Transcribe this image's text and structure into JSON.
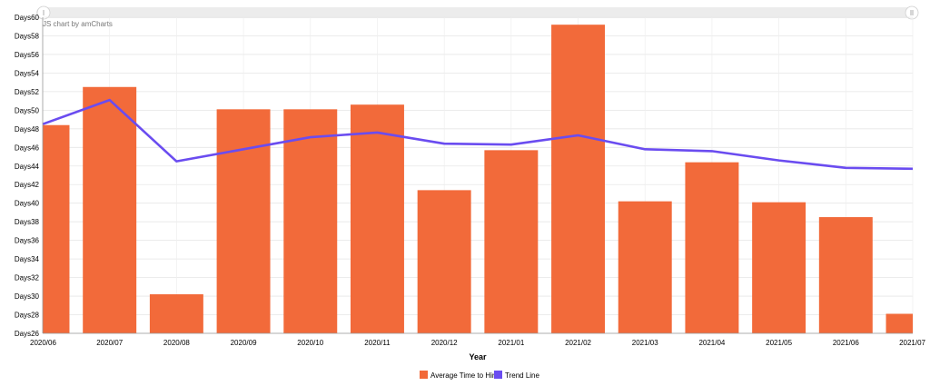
{
  "credit": "JS chart by amCharts",
  "chart_data": {
    "type": "bar",
    "title": "",
    "xlabel": "Year",
    "ylabel": "",
    "y_prefix": "Days",
    "ylim": [
      26,
      60
    ],
    "y_step": 2,
    "grid": true,
    "legend_position": "bottom",
    "categories": [
      "2020/06",
      "2020/07",
      "2020/08",
      "2020/09",
      "2020/10",
      "2020/11",
      "2020/12",
      "2021/01",
      "2021/02",
      "2021/03",
      "2021/04",
      "2021/05",
      "2021/06",
      "2021/07"
    ],
    "series": [
      {
        "name": "Average Time to Hire",
        "type": "bar",
        "color": "#f26a3a",
        "values": [
          48.4,
          52.5,
          30.2,
          50.1,
          50.1,
          50.6,
          41.4,
          45.7,
          59.2,
          40.2,
          44.4,
          40.1,
          38.5,
          28.1
        ]
      },
      {
        "name": "Trend Line",
        "type": "line",
        "color": "#6a4cf0",
        "values": [
          48.5,
          51.1,
          44.5,
          45.8,
          47.1,
          47.6,
          46.4,
          46.3,
          47.3,
          45.8,
          45.6,
          44.6,
          43.8,
          43.7
        ]
      }
    ]
  },
  "scrollbar": {
    "track_color": "#ececec"
  }
}
